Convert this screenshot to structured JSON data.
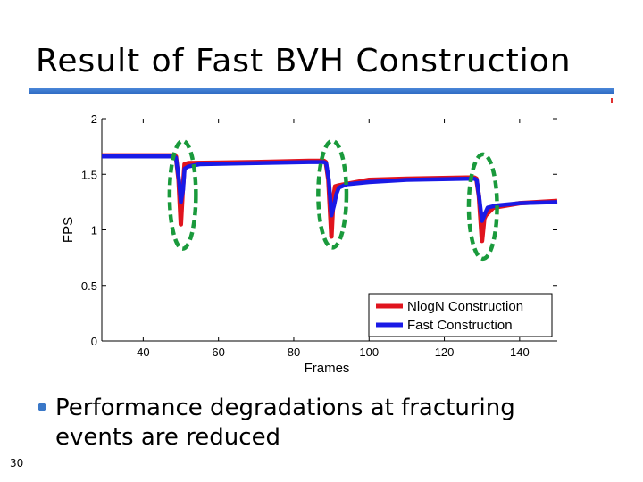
{
  "slide": {
    "title": "Result of Fast BVH Construction",
    "bullet": "Performance degradations at fracturing events are reduced",
    "page_number": "30"
  },
  "colors": {
    "title_rule": "#3d7bd0",
    "nlogn": "#e0141e",
    "fast": "#1a1ae6",
    "highlight": "#1a9a3c",
    "bullet": "#3a78c8"
  },
  "chart_data": {
    "type": "line",
    "title": "",
    "xlabel": "Frames",
    "ylabel": "FPS",
    "xlim": [
      29,
      150
    ],
    "ylim": [
      0,
      2
    ],
    "xticks": [
      40,
      60,
      80,
      100,
      120,
      140
    ],
    "yticks": [
      0,
      0.5,
      1,
      1.5,
      2
    ],
    "ytick_labels": [
      "0",
      "0.5",
      "1",
      "1.5",
      "2"
    ],
    "grid": false,
    "legend_position": "bottom-right",
    "series": [
      {
        "name": "NlogN Construction",
        "color": "#e0141e",
        "points": [
          [
            29,
            1.67
          ],
          [
            48,
            1.67
          ],
          [
            48.7,
            1.66
          ],
          [
            49.4,
            1.45
          ],
          [
            50,
            1.05
          ],
          [
            50.5,
            1.36
          ],
          [
            51,
            1.59
          ],
          [
            52,
            1.6
          ],
          [
            70,
            1.61
          ],
          [
            84,
            1.62
          ],
          [
            88,
            1.62
          ],
          [
            88.5,
            1.61
          ],
          [
            89.2,
            1.45
          ],
          [
            90,
            0.94
          ],
          [
            90.5,
            1.28
          ],
          [
            91,
            1.39
          ],
          [
            92,
            1.4
          ],
          [
            100,
            1.45
          ],
          [
            110,
            1.46
          ],
          [
            126,
            1.47
          ],
          [
            128,
            1.47
          ],
          [
            128.5,
            1.46
          ],
          [
            129.2,
            1.3
          ],
          [
            130,
            0.9
          ],
          [
            130.6,
            1.1
          ],
          [
            131,
            1.13
          ],
          [
            133,
            1.2
          ],
          [
            140,
            1.24
          ],
          [
            150,
            1.26
          ]
        ]
      },
      {
        "name": "Fast Construction",
        "color": "#1a1ae6",
        "points": [
          [
            29,
            1.66
          ],
          [
            48,
            1.66
          ],
          [
            48.7,
            1.65
          ],
          [
            49.5,
            1.45
          ],
          [
            50,
            1.25
          ],
          [
            50.6,
            1.36
          ],
          [
            51,
            1.55
          ],
          [
            52,
            1.57
          ],
          [
            55,
            1.59
          ],
          [
            70,
            1.6
          ],
          [
            84,
            1.61
          ],
          [
            88,
            1.61
          ],
          [
            88.6,
            1.6
          ],
          [
            89.3,
            1.45
          ],
          [
            90,
            1.13
          ],
          [
            90.7,
            1.22
          ],
          [
            91.3,
            1.32
          ],
          [
            92,
            1.38
          ],
          [
            94,
            1.41
          ],
          [
            100,
            1.43
          ],
          [
            110,
            1.45
          ],
          [
            126,
            1.46
          ],
          [
            128,
            1.46
          ],
          [
            128.6,
            1.45
          ],
          [
            129.3,
            1.28
          ],
          [
            130,
            1.08
          ],
          [
            130.7,
            1.14
          ],
          [
            131.5,
            1.2
          ],
          [
            134,
            1.22
          ],
          [
            140,
            1.24
          ],
          [
            150,
            1.25
          ]
        ]
      }
    ],
    "annotations": [
      {
        "shape": "dashed-ellipse",
        "x_range": [
          47,
          54
        ],
        "y_range": [
          0.83,
          1.8
        ]
      },
      {
        "shape": "dashed-ellipse",
        "x_range": [
          86.5,
          94
        ],
        "y_range": [
          0.84,
          1.8
        ]
      },
      {
        "shape": "dashed-ellipse",
        "x_range": [
          126.5,
          134
        ],
        "y_range": [
          0.74,
          1.68
        ]
      }
    ]
  }
}
